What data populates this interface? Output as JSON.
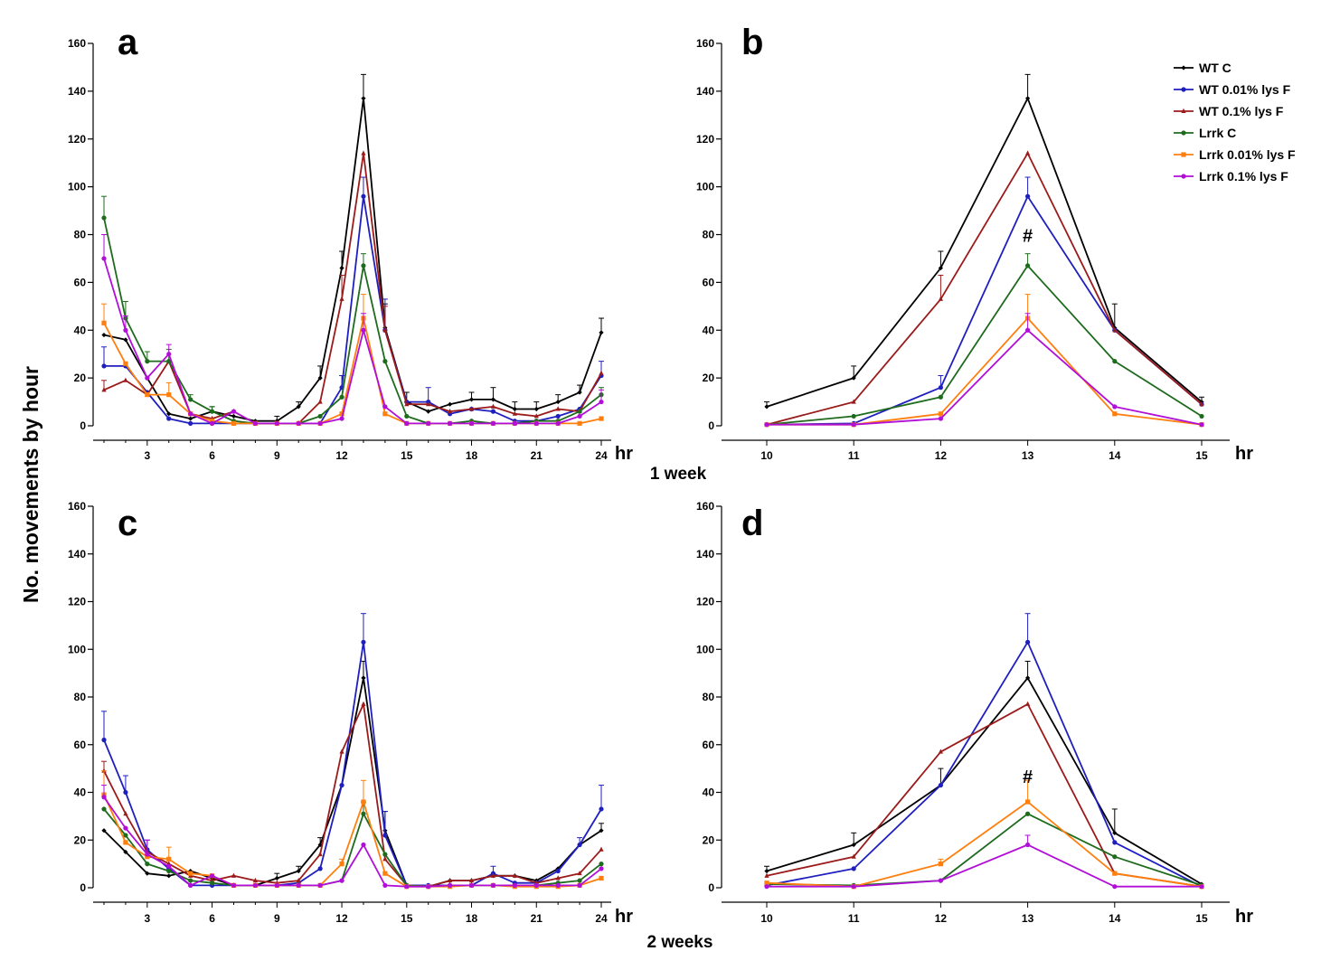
{
  "figure": {
    "ylabel": "No. movements by hour",
    "caption_top": "1 week",
    "caption_bottom": "2 weeks"
  },
  "legend": [
    {
      "label": "WT C",
      "color": "#000000",
      "marker": "diamond"
    },
    {
      "label": "WT 0.01% lys F",
      "color": "#1f1fbf",
      "marker": "circle"
    },
    {
      "label": "WT 0.1% lys F",
      "color": "#9b1b1b",
      "marker": "triangle"
    },
    {
      "label": "Lrrk C",
      "color": "#1e6b1e",
      "marker": "circle"
    },
    {
      "label": "Lrrk  0.01% lys F",
      "color": "#ff7f0e",
      "marker": "square"
    },
    {
      "label": "Lrrk  0.1% lys F",
      "color": "#b10ed8",
      "marker": "circle"
    }
  ],
  "chart_data": [
    {
      "panel": "a",
      "type": "line",
      "xlabel": "hr",
      "ylabel": "No. movements by hour",
      "xlim": [
        0.5,
        24.5
      ],
      "ylim": [
        0,
        160
      ],
      "xticks": [
        3,
        6,
        9,
        12,
        15,
        18,
        21,
        24
      ],
      "yticks": [
        0,
        20,
        40,
        60,
        80,
        100,
        120,
        140,
        160
      ],
      "x": [
        1,
        2,
        3,
        4,
        5,
        6,
        7,
        8,
        9,
        10,
        11,
        12,
        13,
        14,
        15,
        16,
        17,
        18,
        19,
        20,
        21,
        22,
        23,
        24
      ],
      "series": [
        {
          "name": "WT C",
          "values": [
            38,
            36,
            20,
            5,
            3,
            6,
            4,
            2,
            2,
            8,
            20,
            66,
            137,
            41,
            10,
            6,
            9,
            11,
            11,
            7,
            7,
            10,
            14,
            39
          ],
          "errors": [
            0,
            0,
            0,
            0,
            0,
            2,
            0,
            0,
            2,
            2,
            5,
            7,
            10,
            10,
            4,
            0,
            0,
            3,
            5,
            3,
            3,
            3,
            3,
            6
          ]
        },
        {
          "name": "WT 0.01% lys F",
          "values": [
            25,
            25,
            14,
            3,
            1,
            1,
            1,
            1,
            1,
            1,
            1,
            16,
            96,
            40,
            10,
            10,
            5,
            7,
            6,
            2,
            2,
            4,
            7,
            21
          ],
          "errors": [
            8,
            0,
            0,
            0,
            0,
            0,
            0,
            0,
            0,
            0,
            0,
            5,
            8,
            13,
            0,
            6,
            0,
            0,
            0,
            0,
            0,
            0,
            0,
            6
          ]
        },
        {
          "name": "WT 0.1% lys F",
          "values": [
            15,
            19,
            13,
            27,
            5,
            3,
            6,
            1,
            1,
            1,
            10,
            53,
            114,
            40,
            9,
            9,
            6,
            7,
            8,
            5,
            4,
            7,
            6,
            22
          ],
          "errors": [
            4,
            0,
            0,
            0,
            0,
            0,
            0,
            0,
            0,
            0,
            0,
            10,
            0,
            10,
            0,
            0,
            0,
            0,
            0,
            0,
            0,
            0,
            0,
            0
          ]
        },
        {
          "name": "Lrrk C",
          "values": [
            87,
            45,
            27,
            27,
            11,
            6,
            2,
            1,
            1,
            1,
            4,
            12,
            67,
            27,
            4,
            1,
            1,
            2,
            1,
            1,
            2,
            2,
            6,
            13
          ],
          "errors": [
            9,
            7,
            4,
            5,
            2,
            2,
            0,
            0,
            0,
            0,
            0,
            0,
            5,
            0,
            0,
            0,
            0,
            0,
            0,
            0,
            0,
            0,
            0,
            3
          ]
        },
        {
          "name": "Lrrk  0.01% lys F",
          "values": [
            43,
            26,
            13,
            13,
            5,
            2,
            1,
            1,
            1,
            1,
            1,
            5,
            45,
            5,
            1,
            1,
            1,
            1,
            1,
            1,
            1,
            1,
            1,
            3
          ],
          "errors": [
            8,
            0,
            0,
            5,
            0,
            0,
            0,
            0,
            0,
            0,
            0,
            0,
            10,
            0,
            0,
            0,
            0,
            0,
            0,
            0,
            0,
            0,
            0,
            0
          ]
        },
        {
          "name": "Lrrk  0.1% lys F",
          "values": [
            70,
            40,
            20,
            30,
            5,
            1,
            6,
            1,
            1,
            1,
            1,
            3,
            40,
            8,
            1,
            1,
            1,
            1,
            1,
            1,
            1,
            1,
            4,
            10
          ],
          "errors": [
            10,
            6,
            0,
            4,
            0,
            0,
            0,
            0,
            0,
            0,
            0,
            0,
            7,
            0,
            0,
            0,
            0,
            0,
            0,
            0,
            0,
            0,
            0,
            5
          ]
        }
      ]
    },
    {
      "panel": "b",
      "type": "line",
      "xlabel": "hr",
      "ylabel": "No. movements by hour",
      "xlim": [
        9.5,
        15.5
      ],
      "ylim": [
        0,
        160
      ],
      "xticks": [
        10,
        11,
        12,
        13,
        14,
        15
      ],
      "yticks": [
        0,
        20,
        40,
        60,
        80,
        100,
        120,
        140,
        160
      ],
      "x": [
        10,
        11,
        12,
        13,
        14,
        15
      ],
      "annotation": {
        "text": "#",
        "x": 13,
        "y": 77
      },
      "series": [
        {
          "name": "WT C",
          "values": [
            8,
            20,
            66,
            137,
            41,
            10
          ],
          "errors": [
            2,
            5,
            7,
            10,
            10,
            2
          ]
        },
        {
          "name": "WT 0.01% lys F",
          "values": [
            0.5,
            1,
            16,
            96,
            40,
            9
          ],
          "errors": [
            0,
            0,
            5,
            8,
            0,
            0
          ]
        },
        {
          "name": "WT 0.1% lys F",
          "values": [
            0.5,
            10,
            53,
            114,
            40,
            9
          ],
          "errors": [
            0,
            0,
            10,
            0,
            0,
            0
          ]
        },
        {
          "name": "Lrrk C",
          "values": [
            0.5,
            4,
            12,
            67,
            27,
            4
          ],
          "errors": [
            0,
            0,
            0,
            5,
            0,
            0
          ]
        },
        {
          "name": "Lrrk  0.01% lys F",
          "values": [
            0.5,
            0.5,
            5,
            45,
            5,
            0.5
          ],
          "errors": [
            0,
            0,
            0,
            10,
            0,
            0
          ]
        },
        {
          "name": "Lrrk  0.1% lys F",
          "values": [
            0.5,
            0.5,
            3,
            40,
            8,
            0.5
          ],
          "errors": [
            0,
            0,
            0,
            7,
            0,
            0
          ]
        }
      ]
    },
    {
      "panel": "c",
      "type": "line",
      "xlabel": "hr",
      "ylabel": "No. movements by hour",
      "xlim": [
        0.5,
        24.5
      ],
      "ylim": [
        0,
        160
      ],
      "xticks": [
        3,
        6,
        9,
        12,
        15,
        18,
        21,
        24
      ],
      "yticks": [
        0,
        20,
        40,
        60,
        80,
        100,
        120,
        140,
        160
      ],
      "x": [
        1,
        2,
        3,
        4,
        5,
        6,
        7,
        8,
        9,
        10,
        11,
        12,
        13,
        14,
        15,
        16,
        17,
        18,
        19,
        20,
        21,
        22,
        23,
        24
      ],
      "series": [
        {
          "name": "WT C",
          "values": [
            24,
            15,
            6,
            5,
            7,
            4,
            1,
            1,
            4,
            7,
            18,
            43,
            88,
            24,
            1,
            0.5,
            3,
            3,
            5,
            5,
            3,
            8,
            18,
            24
          ],
          "errors": [
            0,
            0,
            0,
            0,
            0,
            0,
            0,
            0,
            2,
            2,
            3,
            0,
            7,
            8,
            0,
            0,
            0,
            0,
            0,
            0,
            0,
            0,
            0,
            3
          ]
        },
        {
          "name": "WT 0.01% lys F",
          "values": [
            62,
            40,
            16,
            8,
            1,
            1,
            1,
            1,
            1,
            2,
            8,
            43,
            103,
            22,
            1,
            1,
            1,
            1,
            6,
            2,
            2,
            7,
            18,
            33
          ],
          "errors": [
            12,
            7,
            4,
            0,
            0,
            0,
            0,
            0,
            0,
            0,
            0,
            0,
            12,
            10,
            0,
            0,
            0,
            0,
            3,
            0,
            0,
            0,
            3,
            10
          ]
        },
        {
          "name": "WT 0.1% lys F",
          "values": [
            49,
            31,
            15,
            10,
            5,
            3,
            5,
            3,
            2,
            3,
            14,
            57,
            77,
            12,
            1,
            0.5,
            3,
            3,
            5,
            5,
            2,
            4,
            6,
            16
          ],
          "errors": [
            4,
            0,
            0,
            0,
            0,
            0,
            0,
            0,
            0,
            0,
            0,
            0,
            0,
            0,
            0,
            0,
            0,
            0,
            0,
            0,
            0,
            0,
            0,
            0
          ]
        },
        {
          "name": "Lrrk C",
          "values": [
            33,
            22,
            10,
            7,
            3,
            2,
            1,
            1,
            1,
            1,
            1,
            3,
            31,
            14,
            1,
            0.5,
            1,
            1,
            1,
            1,
            1,
            2,
            3,
            10
          ],
          "errors": [
            0,
            0,
            0,
            0,
            0,
            0,
            0,
            0,
            0,
            0,
            0,
            0,
            5,
            0,
            0,
            0,
            0,
            0,
            0,
            0,
            0,
            0,
            0,
            0
          ]
        },
        {
          "name": "Lrrk  0.01% lys F",
          "values": [
            39,
            19,
            13,
            12,
            6,
            5,
            1,
            1,
            1,
            1,
            1,
            10,
            36,
            6,
            0.5,
            0.5,
            0.5,
            1,
            1,
            0.5,
            0.5,
            0.5,
            1,
            4
          ],
          "errors": [
            10,
            0,
            0,
            5,
            0,
            0,
            0,
            0,
            0,
            0,
            0,
            2,
            9,
            0,
            0,
            0,
            0,
            0,
            0,
            0,
            0,
            0,
            0,
            0
          ]
        },
        {
          "name": "Lrrk  0.1% lys F",
          "values": [
            38,
            25,
            14,
            9,
            1,
            5,
            1,
            1,
            1,
            1,
            1,
            3,
            18,
            1,
            0.5,
            0.5,
            1,
            1,
            1,
            1,
            1,
            1,
            1,
            8
          ],
          "errors": [
            5,
            0,
            6,
            0,
            0,
            0,
            0,
            0,
            0,
            0,
            0,
            0,
            0,
            0,
            0,
            0,
            0,
            0,
            0,
            0,
            0,
            0,
            0,
            0
          ]
        }
      ]
    },
    {
      "panel": "d",
      "type": "line",
      "xlabel": "hr",
      "ylabel": "No. movements by hour",
      "xlim": [
        9.5,
        15.5
      ],
      "ylim": [
        0,
        160
      ],
      "xticks": [
        10,
        11,
        12,
        13,
        14,
        15
      ],
      "yticks": [
        0,
        20,
        40,
        60,
        80,
        100,
        120,
        140,
        160
      ],
      "x": [
        10,
        11,
        12,
        13,
        14,
        15
      ],
      "annotation": {
        "text": "#",
        "x": 13,
        "y": 44
      },
      "series": [
        {
          "name": "WT C",
          "values": [
            7,
            18,
            43,
            88,
            23,
            1.5
          ],
          "errors": [
            2,
            5,
            7,
            7,
            10,
            0
          ]
        },
        {
          "name": "WT 0.01% lys F",
          "values": [
            1,
            8,
            43,
            103,
            19,
            0.5
          ],
          "errors": [
            0,
            0,
            0,
            12,
            0,
            0
          ]
        },
        {
          "name": "WT 0.1% lys F",
          "values": [
            5,
            13,
            57,
            77,
            6,
            0.5
          ],
          "errors": [
            0,
            0,
            0,
            0,
            0,
            0
          ]
        },
        {
          "name": "Lrrk C",
          "values": [
            1.5,
            1,
            3,
            31,
            13,
            1
          ],
          "errors": [
            0,
            0,
            0,
            0,
            0,
            0
          ]
        },
        {
          "name": "Lrrk  0.01% lys F",
          "values": [
            2,
            0.5,
            10,
            36,
            6,
            0.5
          ],
          "errors": [
            0,
            0,
            2,
            9,
            0,
            0
          ]
        },
        {
          "name": "Lrrk  0.1% lys F",
          "values": [
            0.5,
            0.5,
            3,
            18,
            0.5,
            0.5
          ],
          "errors": [
            0,
            0,
            0,
            4,
            0,
            0
          ]
        }
      ]
    }
  ]
}
